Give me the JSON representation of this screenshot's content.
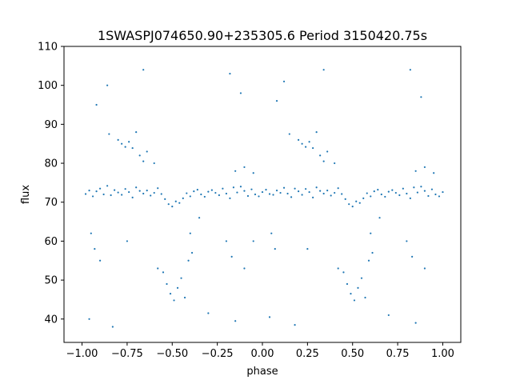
{
  "chart_data": {
    "type": "scatter",
    "title": "1SWASPJ074650.90+235305.6 Period 3150420.75s",
    "xlabel": "phase",
    "ylabel": "flux",
    "xlim": [
      -1.1,
      1.1
    ],
    "ylim": [
      34,
      110
    ],
    "x_ticks": [
      -1.0,
      -0.75,
      -0.5,
      -0.25,
      0.0,
      0.25,
      0.5,
      0.75,
      1.0
    ],
    "x_tick_labels": [
      "−1.00",
      "−0.75",
      "−0.50",
      "−0.25",
      "0.00",
      "0.25",
      "0.50",
      "0.75",
      "1.00"
    ],
    "y_ticks": [
      40,
      50,
      60,
      70,
      80,
      90,
      100,
      110
    ],
    "y_tick_labels": [
      "40",
      "50",
      "60",
      "70",
      "80",
      "90",
      "100",
      "110"
    ],
    "grid": false,
    "legend": "none",
    "marker_color": "#1f77b4",
    "series": [
      {
        "points": [
          [
            -0.98,
            72.1
          ],
          [
            -0.96,
            73.0
          ],
          [
            -0.94,
            71.5
          ],
          [
            -0.92,
            72.8
          ],
          [
            -0.9,
            73.5
          ],
          [
            -0.88,
            72.0
          ],
          [
            -0.86,
            74.2
          ],
          [
            -0.84,
            71.8
          ],
          [
            -0.82,
            73.1
          ],
          [
            -0.8,
            72.5
          ],
          [
            -0.78,
            71.9
          ],
          [
            -0.76,
            73.4
          ],
          [
            -0.74,
            72.6
          ],
          [
            -0.72,
            71.2
          ],
          [
            -0.7,
            73.8
          ],
          [
            -0.68,
            72.9
          ],
          [
            -0.66,
            72.2
          ],
          [
            -0.64,
            73.0
          ],
          [
            -0.62,
            71.7
          ],
          [
            -0.6,
            72.4
          ],
          [
            -0.58,
            73.6
          ],
          [
            -0.56,
            72.1
          ],
          [
            -0.54,
            70.8
          ],
          [
            -0.52,
            69.5
          ],
          [
            -0.5,
            68.9
          ],
          [
            -0.48,
            70.2
          ],
          [
            -0.46,
            69.8
          ],
          [
            -0.44,
            71.0
          ],
          [
            -0.42,
            72.3
          ],
          [
            -0.4,
            71.5
          ],
          [
            -0.38,
            72.8
          ],
          [
            -0.36,
            73.2
          ],
          [
            -0.34,
            72.0
          ],
          [
            -0.32,
            71.4
          ],
          [
            -0.3,
            72.7
          ],
          [
            -0.28,
            73.1
          ],
          [
            -0.26,
            72.4
          ],
          [
            -0.24,
            71.8
          ],
          [
            -0.22,
            73.5
          ],
          [
            -0.2,
            72.2
          ],
          [
            -0.18,
            71.0
          ],
          [
            -0.16,
            73.8
          ],
          [
            -0.14,
            72.5
          ],
          [
            -0.12,
            74.0
          ],
          [
            -0.1,
            72.9
          ],
          [
            -0.08,
            71.6
          ],
          [
            -0.06,
            73.3
          ],
          [
            -0.04,
            72.0
          ],
          [
            -0.02,
            71.5
          ],
          [
            0.0,
            72.6
          ],
          [
            0.02,
            73.2
          ],
          [
            0.04,
            72.1
          ],
          [
            0.06,
            71.9
          ],
          [
            0.08,
            73.0
          ],
          [
            0.1,
            72.4
          ],
          [
            0.12,
            73.7
          ],
          [
            0.14,
            72.2
          ],
          [
            0.16,
            71.3
          ],
          [
            0.18,
            73.5
          ],
          [
            0.2,
            72.8
          ],
          [
            0.22,
            71.9
          ],
          [
            0.24,
            73.4
          ],
          [
            0.26,
            72.6
          ],
          [
            0.28,
            71.2
          ],
          [
            0.3,
            73.8
          ],
          [
            0.32,
            72.9
          ],
          [
            0.34,
            72.2
          ],
          [
            0.36,
            73.0
          ],
          [
            0.38,
            71.7
          ],
          [
            0.4,
            72.4
          ],
          [
            0.42,
            73.6
          ],
          [
            0.44,
            72.1
          ],
          [
            0.46,
            70.8
          ],
          [
            0.48,
            69.5
          ],
          [
            0.5,
            68.9
          ],
          [
            0.52,
            70.2
          ],
          [
            0.54,
            69.8
          ],
          [
            0.56,
            71.0
          ],
          [
            0.58,
            72.3
          ],
          [
            0.6,
            71.5
          ],
          [
            0.62,
            72.8
          ],
          [
            0.64,
            73.2
          ],
          [
            0.66,
            72.0
          ],
          [
            0.68,
            71.4
          ],
          [
            0.7,
            72.7
          ],
          [
            0.72,
            73.1
          ],
          [
            0.74,
            72.4
          ],
          [
            0.76,
            71.8
          ],
          [
            0.78,
            73.5
          ],
          [
            0.8,
            72.2
          ],
          [
            0.82,
            71.0
          ],
          [
            0.84,
            73.8
          ],
          [
            0.86,
            72.5
          ],
          [
            0.88,
            74.0
          ],
          [
            0.9,
            72.9
          ],
          [
            0.92,
            71.6
          ],
          [
            0.94,
            73.3
          ],
          [
            0.96,
            72.0
          ],
          [
            0.98,
            71.5
          ],
          [
            1.0,
            72.6
          ],
          [
            -0.8,
            86.0
          ],
          [
            -0.78,
            85.0
          ],
          [
            -0.76,
            84.2
          ],
          [
            -0.74,
            85.5
          ],
          [
            -0.72,
            83.9
          ],
          [
            -0.68,
            82.0
          ],
          [
            -0.66,
            80.5
          ],
          [
            -0.64,
            83.0
          ],
          [
            -0.7,
            88.0
          ],
          [
            -0.85,
            87.5
          ],
          [
            0.2,
            86.0
          ],
          [
            0.22,
            85.0
          ],
          [
            0.24,
            84.2
          ],
          [
            0.26,
            85.5
          ],
          [
            0.28,
            83.9
          ],
          [
            0.32,
            82.0
          ],
          [
            0.34,
            80.5
          ],
          [
            0.36,
            83.0
          ],
          [
            0.3,
            88.0
          ],
          [
            0.15,
            87.5
          ],
          [
            -0.55,
            52.0
          ],
          [
            -0.53,
            49.0
          ],
          [
            -0.51,
            46.5
          ],
          [
            -0.49,
            44.8
          ],
          [
            -0.47,
            48.0
          ],
          [
            -0.45,
            50.5
          ],
          [
            -0.43,
            45.5
          ],
          [
            -0.41,
            55.0
          ],
          [
            -0.39,
            57.0
          ],
          [
            -0.58,
            53.0
          ],
          [
            0.45,
            52.0
          ],
          [
            0.47,
            49.0
          ],
          [
            0.49,
            46.5
          ],
          [
            0.51,
            44.8
          ],
          [
            0.53,
            48.0
          ],
          [
            0.55,
            50.5
          ],
          [
            0.57,
            45.5
          ],
          [
            0.59,
            55.0
          ],
          [
            0.61,
            57.0
          ],
          [
            0.42,
            53.0
          ],
          [
            -0.95,
            62.0
          ],
          [
            -0.93,
            58.0
          ],
          [
            -0.9,
            55.0
          ],
          [
            -0.2,
            60.0
          ],
          [
            -0.17,
            56.0
          ],
          [
            -0.1,
            53.0
          ],
          [
            0.05,
            62.0
          ],
          [
            0.07,
            58.0
          ],
          [
            0.8,
            60.0
          ],
          [
            0.83,
            56.0
          ],
          [
            0.9,
            53.0
          ],
          [
            -0.05,
            60.0
          ],
          [
            0.25,
            58.0
          ],
          [
            -0.75,
            60.0
          ],
          [
            -0.92,
            95.0
          ],
          [
            -0.86,
            100.0
          ],
          [
            -0.18,
            103.0
          ],
          [
            -0.12,
            98.0
          ],
          [
            0.08,
            96.0
          ],
          [
            0.12,
            101.0
          ],
          [
            0.82,
            104.0
          ],
          [
            0.88,
            97.0
          ],
          [
            -0.66,
            104.0
          ],
          [
            0.34,
            104.0
          ],
          [
            -0.96,
            40.0
          ],
          [
            -0.83,
            38.0
          ],
          [
            -0.15,
            39.5
          ],
          [
            0.04,
            40.5
          ],
          [
            0.18,
            38.5
          ],
          [
            0.85,
            39.0
          ],
          [
            0.7,
            41.0
          ],
          [
            -0.3,
            41.5
          ],
          [
            -0.15,
            78.0
          ],
          [
            -0.1,
            79.0
          ],
          [
            -0.05,
            77.5
          ],
          [
            0.85,
            78.0
          ],
          [
            0.9,
            79.0
          ],
          [
            0.95,
            77.5
          ],
          [
            -0.6,
            80.0
          ],
          [
            0.4,
            80.0
          ],
          [
            -0.35,
            66.0
          ],
          [
            0.65,
            66.0
          ],
          [
            -0.4,
            62.0
          ],
          [
            0.6,
            62.0
          ]
        ]
      }
    ]
  }
}
